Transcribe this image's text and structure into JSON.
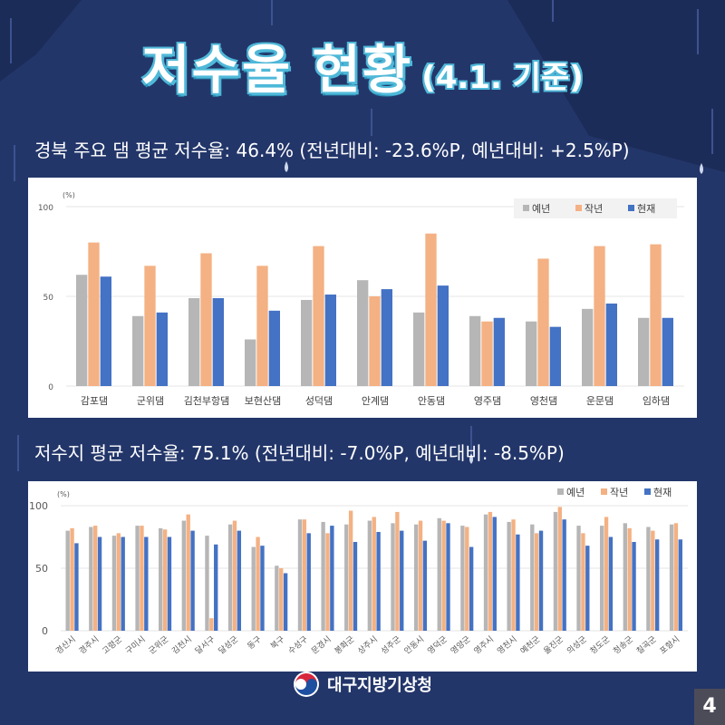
{
  "title": {
    "main": "저수율 현황",
    "sub": "(4.1. 기준)"
  },
  "summary1": "경북 주요 댐 평균 저수율: 46.4% (전년대비: -23.6%P, 예년대비: +2.5%P)",
  "summary2": "저수지 평균 저수율: 75.1% (전년대비: -7.0%P, 예년대비: -8.5%P)",
  "footer": {
    "org": "대구지방기상청",
    "page": "4"
  },
  "colors": {
    "prev_avg": "#b6b6b6",
    "last_year": "#f4b183",
    "current": "#4472c4",
    "background": "#23366a"
  },
  "chart_data": [
    {
      "type": "bar",
      "unit_label": "(%)",
      "ylim": [
        0,
        100
      ],
      "yticks": [
        0,
        50,
        100
      ],
      "legend_position": "top-right",
      "grid": true,
      "categories": [
        "감포댐",
        "군위댐",
        "김천부항댐",
        "보현산댐",
        "성덕댐",
        "안계댐",
        "안동댐",
        "영주댐",
        "영천댐",
        "운문댐",
        "임하댐"
      ],
      "series": [
        {
          "name": "예년",
          "values": [
            62,
            39,
            49,
            26,
            48,
            59,
            41,
            39,
            36,
            43,
            38
          ]
        },
        {
          "name": "작년",
          "values": [
            80,
            67,
            74,
            67,
            78,
            50,
            85,
            36,
            71,
            78,
            79
          ]
        },
        {
          "name": "현재",
          "values": [
            61,
            41,
            49,
            42,
            51,
            54,
            56,
            38,
            33,
            46,
            38
          ]
        }
      ]
    },
    {
      "type": "bar",
      "unit_label": "(%)",
      "ylim": [
        0,
        100
      ],
      "yticks": [
        0,
        50,
        100
      ],
      "legend_position": "top-right",
      "grid": true,
      "categories": [
        "경산시",
        "경주시",
        "고령군",
        "구미시",
        "군위군",
        "김천시",
        "달서구",
        "달성군",
        "동구",
        "북구",
        "수성구",
        "문경시",
        "봉화군",
        "상주시",
        "성주군",
        "안동시",
        "영덕군",
        "영양군",
        "영주시",
        "영천시",
        "예천군",
        "울진군",
        "의성군",
        "청도군",
        "청송군",
        "칠곡군",
        "포항시"
      ],
      "series": [
        {
          "name": "예년",
          "values": [
            80,
            83,
            76,
            84,
            82,
            88,
            76,
            85,
            67,
            52,
            89,
            87,
            85,
            88,
            86,
            85,
            90,
            84,
            93,
            87,
            85,
            95,
            84,
            84,
            86,
            83,
            85
          ]
        },
        {
          "name": "작년",
          "values": [
            82,
            84,
            78,
            84,
            81,
            93,
            10,
            88,
            75,
            50,
            89,
            78,
            96,
            91,
            95,
            88,
            88,
            83,
            95,
            89,
            78,
            99,
            78,
            91,
            82,
            80,
            86
          ]
        },
        {
          "name": "현재",
          "values": [
            70,
            75,
            75,
            75,
            75,
            80,
            69,
            80,
            68,
            46,
            78,
            84,
            71,
            79,
            80,
            72,
            86,
            67,
            91,
            77,
            80,
            89,
            68,
            75,
            71,
            73,
            73
          ]
        }
      ]
    }
  ]
}
